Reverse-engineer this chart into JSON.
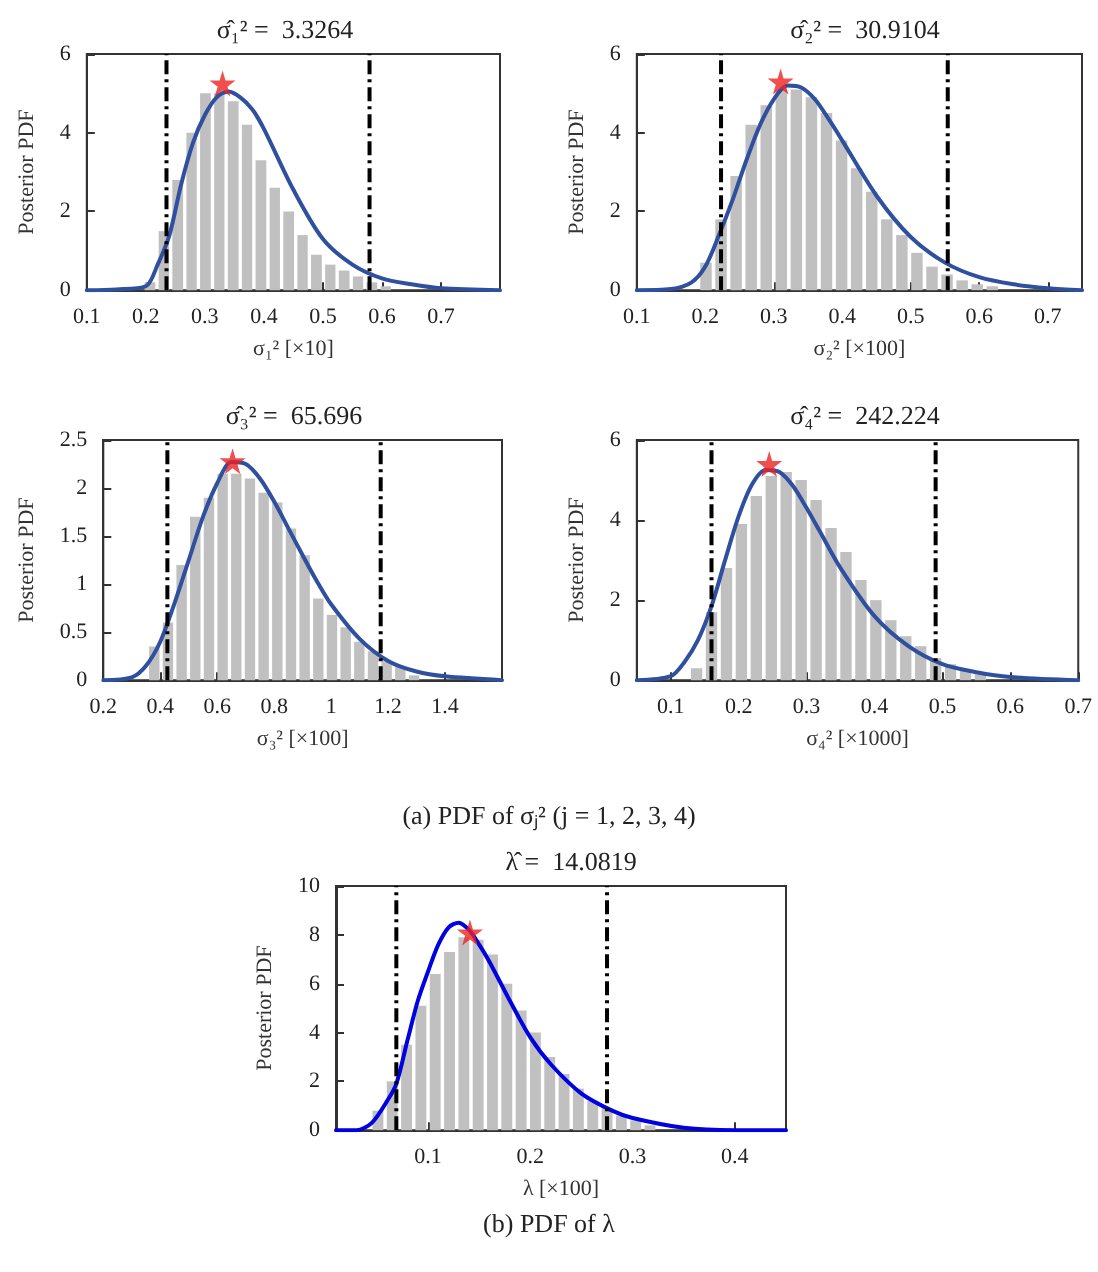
{
  "chart_data": [
    {
      "type": "histogram",
      "title": "σ̂₁² =  3.3264",
      "xlabel": "σ₁² [×10]",
      "ylabel": "Posterior PDF",
      "xlim": [
        0.1,
        0.8
      ],
      "xticks": [
        0.1,
        0.2,
        0.3,
        0.4,
        0.5,
        0.6,
        0.7
      ],
      "ylim": [
        0,
        6
      ],
      "yticks": [
        0,
        2,
        4,
        6
      ],
      "series": [
        {
          "type": "histogram",
          "color": "#c0c0c0",
          "bins": [
            0.195,
            0.219,
            0.242,
            0.266,
            0.289,
            0.313,
            0.336,
            0.36,
            0.383,
            0.407,
            0.43,
            0.454,
            0.477,
            0.501,
            0.524,
            0.548,
            0.571,
            0.595,
            0.618
          ],
          "values": [
            0.2,
            1.5,
            2.8,
            4.0,
            5.0,
            5.0,
            4.8,
            4.2,
            3.3,
            2.6,
            2.0,
            1.4,
            0.9,
            0.65,
            0.5,
            0.35,
            0.2,
            0.1
          ]
        },
        {
          "type": "line",
          "color": "#2f4f9f",
          "x": [
            0.1,
            0.15,
            0.2,
            0.22,
            0.24,
            0.26,
            0.28,
            0.3,
            0.32,
            0.34,
            0.36,
            0.38,
            0.4,
            0.45,
            0.5,
            0.55,
            0.6,
            0.65,
            0.7,
            0.8
          ],
          "values": [
            0,
            0.02,
            0.1,
            0.65,
            1.4,
            2.7,
            3.75,
            4.45,
            4.9,
            5.05,
            4.9,
            4.6,
            4.1,
            2.55,
            1.3,
            0.65,
            0.3,
            0.15,
            0.05,
            0
          ]
        },
        {
          "type": "scatter",
          "color": "#ee2222",
          "marker": "star",
          "x": [
            0.33
          ],
          "values": [
            5.25
          ]
        }
      ],
      "ref_lines": [
        {
          "axis": "x",
          "value": 0.235,
          "color": "#000000",
          "line_style": "dashed"
        },
        {
          "axis": "x",
          "value": 0.579,
          "color": "#000000",
          "line_style": "dashed"
        }
      ]
    },
    {
      "type": "histogram",
      "title": "σ̂₂² =  30.9104",
      "xlabel": "σ₂² [×100]",
      "ylabel": "Posterior PDF",
      "xlim": [
        0.1,
        0.75
      ],
      "xticks": [
        0.1,
        0.2,
        0.3,
        0.4,
        0.5,
        0.6,
        0.7
      ],
      "ylim": [
        0,
        6
      ],
      "yticks": [
        0,
        2,
        4,
        6
      ],
      "series": [
        {
          "type": "histogram",
          "color": "#c0c0c0",
          "bins": [
            0.19,
            0.212,
            0.234,
            0.256,
            0.278,
            0.3,
            0.322,
            0.344,
            0.366,
            0.388,
            0.41,
            0.432,
            0.454,
            0.476,
            0.498,
            0.52,
            0.542,
            0.564,
            0.586,
            0.608,
            0.63
          ],
          "values": [
            0.7,
            1.8,
            2.9,
            4.2,
            4.7,
            5.1,
            5.1,
            4.9,
            4.5,
            3.8,
            3.1,
            2.5,
            1.8,
            1.4,
            0.95,
            0.6,
            0.4,
            0.25,
            0.15,
            0.1
          ]
        },
        {
          "type": "line",
          "color": "#2f4f9f",
          "x": [
            0.1,
            0.15,
            0.18,
            0.2,
            0.22,
            0.24,
            0.26,
            0.28,
            0.3,
            0.32,
            0.34,
            0.36,
            0.38,
            0.4,
            0.45,
            0.5,
            0.55,
            0.6,
            0.65,
            0.7,
            0.75
          ],
          "values": [
            0,
            0.03,
            0.2,
            0.6,
            1.4,
            2.3,
            3.3,
            4.2,
            4.85,
            5.2,
            5.15,
            4.85,
            4.35,
            3.8,
            2.4,
            1.35,
            0.7,
            0.33,
            0.15,
            0.05,
            0
          ]
        },
        {
          "type": "scatter",
          "color": "#ee2222",
          "marker": "star",
          "x": [
            0.31
          ],
          "values": [
            5.3
          ]
        }
      ],
      "ref_lines": [
        {
          "axis": "x",
          "value": 0.223,
          "color": "#000000",
          "line_style": "dashed"
        },
        {
          "axis": "x",
          "value": 0.554,
          "color": "#000000",
          "line_style": "dashed"
        }
      ]
    },
    {
      "type": "histogram",
      "title": "σ̂₃² =  65.696",
      "xlabel": "σ₃² [×100]",
      "ylabel": "Posterior PDF",
      "xlim": [
        0.2,
        1.6
      ],
      "xticks": [
        0.2,
        0.4,
        0.6,
        0.8,
        1,
        1.2,
        1.4
      ],
      "ylim": [
        0,
        2.5
      ],
      "yticks": [
        0,
        0.5,
        1,
        1.5,
        2,
        2.5
      ],
      "series": [
        {
          "type": "histogram",
          "color": "#c0c0c0",
          "bins": [
            0.355,
            0.403,
            0.451,
            0.499,
            0.547,
            0.595,
            0.643,
            0.691,
            0.739,
            0.787,
            0.835,
            0.883,
            0.931,
            0.979,
            1.027,
            1.075,
            1.123,
            1.171,
            1.219,
            1.267,
            1.315
          ],
          "values": [
            0.35,
            0.6,
            1.2,
            1.7,
            1.9,
            2.15,
            2.15,
            2.1,
            1.95,
            1.85,
            1.58,
            1.3,
            0.85,
            0.68,
            0.55,
            0.4,
            0.3,
            0.2,
            0.15,
            0.05
          ]
        },
        {
          "type": "line",
          "color": "#2f4f9f",
          "x": [
            0.2,
            0.3,
            0.35,
            0.4,
            0.45,
            0.5,
            0.55,
            0.6,
            0.65,
            0.7,
            0.75,
            0.8,
            0.85,
            0.9,
            0.95,
            1.0,
            1.1,
            1.2,
            1.3,
            1.4,
            1.6
          ],
          "values": [
            0,
            0.03,
            0.15,
            0.4,
            0.8,
            1.25,
            1.7,
            2.05,
            2.27,
            2.25,
            2.1,
            1.86,
            1.58,
            1.3,
            1.03,
            0.79,
            0.43,
            0.2,
            0.09,
            0.04,
            0
          ]
        },
        {
          "type": "scatter",
          "color": "#ee2222",
          "marker": "star",
          "x": [
            0.654
          ],
          "values": [
            2.28
          ]
        }
      ],
      "ref_lines": [
        {
          "axis": "x",
          "value": 0.425,
          "color": "#000000",
          "line_style": "dashed"
        },
        {
          "axis": "x",
          "value": 1.174,
          "color": "#000000",
          "line_style": "dashed"
        }
      ],
      "annotations": [
        "(a) PDF of σⱼ² (j = 1, 2, 3, 4)"
      ]
    },
    {
      "type": "histogram",
      "title": "σ̂₄² =  242.224",
      "xlabel": "σ₄² [×1000]",
      "ylabel": "Posterior PDF",
      "xlim": [
        0.05,
        0.7
      ],
      "xticks": [
        0.1,
        0.2,
        0.3,
        0.4,
        0.5,
        0.6,
        0.7
      ],
      "ylim": [
        0,
        6
      ],
      "yticks": [
        0,
        2,
        4,
        6
      ],
      "series": [
        {
          "type": "histogram",
          "color": "#c0c0c0",
          "bins": [
            0.127,
            0.149,
            0.171,
            0.193,
            0.215,
            0.237,
            0.259,
            0.281,
            0.303,
            0.325,
            0.347,
            0.369,
            0.391,
            0.413,
            0.435,
            0.457,
            0.479,
            0.501,
            0.523,
            0.545,
            0.567
          ],
          "values": [
            0.3,
            1.7,
            2.8,
            3.9,
            4.6,
            5.1,
            5.2,
            5.0,
            4.5,
            3.8,
            3.2,
            2.5,
            2.0,
            1.5,
            1.1,
            0.85,
            0.55,
            0.4,
            0.25,
            0.15
          ]
        },
        {
          "type": "line",
          "color": "#2f4f9f",
          "x": [
            0.05,
            0.1,
            0.12,
            0.14,
            0.16,
            0.18,
            0.2,
            0.22,
            0.24,
            0.26,
            0.28,
            0.3,
            0.32,
            0.35,
            0.4,
            0.45,
            0.5,
            0.55,
            0.6,
            0.7
          ],
          "values": [
            0,
            0.1,
            0.45,
            1.0,
            1.85,
            3.0,
            4.1,
            4.9,
            5.25,
            5.2,
            4.85,
            4.3,
            3.7,
            2.8,
            1.6,
            0.85,
            0.4,
            0.2,
            0.08,
            0
          ]
        },
        {
          "type": "scatter",
          "color": "#ee2222",
          "marker": "star",
          "x": [
            0.245
          ],
          "values": [
            5.4
          ]
        }
      ],
      "ref_lines": [
        {
          "axis": "x",
          "value": 0.16,
          "color": "#000000",
          "line_style": "dashed"
        },
        {
          "axis": "x",
          "value": 0.49,
          "color": "#000000",
          "line_style": "dashed"
        }
      ]
    },
    {
      "type": "histogram",
      "title": "λ̂ =  14.0819",
      "xlabel": "λ [×100]",
      "ylabel": "Posterior PDF",
      "xlim": [
        0.01,
        0.45
      ],
      "xticks": [
        0.1,
        0.2,
        0.3,
        0.4
      ],
      "ylim": [
        0,
        10
      ],
      "yticks": [
        0,
        2,
        4,
        6,
        8,
        10
      ],
      "series": [
        {
          "type": "histogram",
          "color": "#c0c0c0",
          "bins": [
            0.044,
            0.058,
            0.072,
            0.086,
            0.1,
            0.114,
            0.128,
            0.142,
            0.156,
            0.17,
            0.184,
            0.198,
            0.212,
            0.226,
            0.24,
            0.254,
            0.268,
            0.282,
            0.296,
            0.31,
            0.324
          ],
          "values": [
            0.8,
            2.0,
            3.5,
            5.1,
            6.4,
            7.3,
            7.9,
            7.8,
            7.2,
            6.0,
            4.9,
            4.0,
            3.0,
            2.3,
            1.7,
            1.2,
            0.9,
            0.6,
            0.4,
            0.2
          ]
        },
        {
          "type": "line",
          "color": "#0000e0",
          "x": [
            0.01,
            0.03,
            0.045,
            0.06,
            0.069,
            0.08,
            0.09,
            0.1,
            0.11,
            0.12,
            0.13,
            0.14,
            0.15,
            0.16,
            0.18,
            0.2,
            0.22,
            0.25,
            0.28,
            0.3,
            0.35,
            0.4,
            0.45
          ],
          "values": [
            0,
            0,
            0.3,
            1.2,
            1.9,
            3.7,
            5.3,
            6.5,
            7.6,
            8.3,
            8.5,
            8.2,
            7.6,
            6.9,
            5.3,
            3.8,
            2.7,
            1.5,
            0.8,
            0.5,
            0.1,
            0,
            0
          ]
        },
        {
          "type": "scatter",
          "color": "#ee2222",
          "marker": "star",
          "x": [
            0.141
          ],
          "values": [
            8.1
          ]
        }
      ],
      "ref_lines": [
        {
          "axis": "x",
          "value": 0.069,
          "color": "#000000",
          "line_style": "dashed"
        },
        {
          "axis": "x",
          "value": 0.275,
          "color": "#000000",
          "line_style": "dashed"
        }
      ],
      "annotations": [
        "(b) PDF of λ"
      ]
    }
  ]
}
